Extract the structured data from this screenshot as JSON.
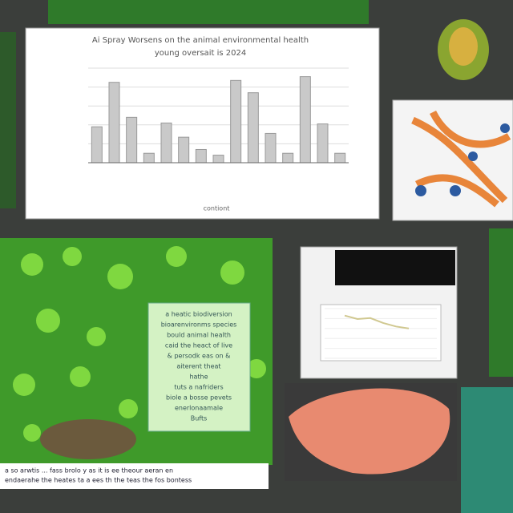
{
  "chart_data": [
    {
      "type": "bar",
      "title": "Ai Spray Worsens on the animal environmental health",
      "subtitle": "young oversait is 2024",
      "xlabel": "contiont",
      "categories": [
        null,
        null,
        null,
        null,
        null,
        null,
        null,
        null,
        null,
        null,
        null,
        null,
        null,
        null,
        null
      ],
      "values": [
        38,
        85,
        48,
        10,
        42,
        27,
        14,
        8,
        87,
        74,
        31,
        10,
        91,
        41,
        10
      ],
      "color": "#c9c9c9",
      "ylim": [
        0,
        100
      ],
      "yticks": [
        0,
        20,
        40,
        60,
        80,
        100
      ],
      "grid": true
    },
    {
      "type": "line",
      "categories": [
        null,
        null,
        null,
        null,
        null,
        null
      ],
      "values": [
        86,
        79,
        81,
        71,
        64,
        60
      ],
      "color": "#d0c890",
      "ylim": [
        0,
        100
      ],
      "yticks": [
        0,
        20,
        40,
        60,
        80,
        100
      ],
      "grid": true
    }
  ],
  "note_box": {
    "lines": [
      "a heatic biodiversion",
      "bioarenvironms species",
      "bould animal health",
      "caid the heact of live",
      "& persodk eas on &",
      "aiterent theat",
      "hathe",
      "tuts a nafriders",
      "biole a bosse pevets",
      "enerlonaamale",
      "Bufts"
    ]
  },
  "caption": {
    "lines": [
      "a so arwtis ... fass brolo y as it is ee theour aeran en",
      "endaerahe the heates ta a ees th the teas the fos bontess"
    ]
  }
}
